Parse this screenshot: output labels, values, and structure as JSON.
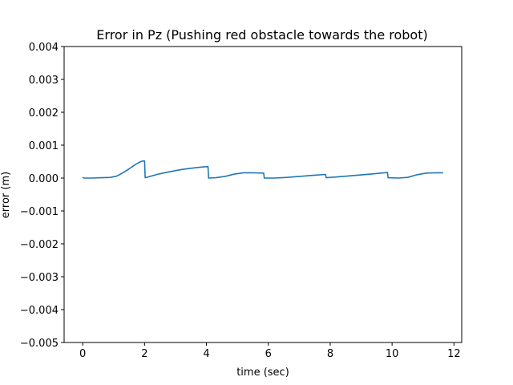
{
  "chart_data": {
    "type": "line",
    "title": "Error in Pz (Pushing red obstacle towards the robot)",
    "xlabel": "time (sec)",
    "ylabel": "error (m)",
    "xlim": [
      -0.6,
      12.25
    ],
    "ylim": [
      -0.005,
      0.004
    ],
    "x_ticks": [
      0,
      2,
      4,
      6,
      8,
      10,
      12
    ],
    "x_tick_labels": [
      "0",
      "2",
      "4",
      "6",
      "8",
      "10",
      "12"
    ],
    "y_ticks": [
      0.004,
      0.003,
      0.002,
      0.001,
      0.0,
      -0.001,
      -0.002,
      -0.003,
      -0.004,
      -0.005
    ],
    "y_tick_labels": [
      "0.004",
      "0.003",
      "0.002",
      "0.001",
      "0.000",
      "−0.001",
      "−0.002",
      "−0.003",
      "−0.004",
      "−0.005"
    ],
    "grid": false,
    "line_color": "#1f77b4",
    "series": [
      {
        "x": [
          0.0,
          0.05,
          0.3,
          0.6,
          0.9,
          1.1,
          1.3,
          1.5,
          1.7,
          1.85,
          1.95,
          2.0,
          2.02,
          2.1,
          2.4,
          2.8,
          3.2,
          3.6,
          3.9,
          4.05,
          4.07,
          4.3,
          4.6,
          4.9,
          5.2,
          5.5,
          5.85,
          5.87,
          6.2,
          6.6,
          7.0,
          7.4,
          7.85,
          7.87,
          8.3,
          8.8,
          9.3,
          9.85,
          9.87,
          10.2,
          10.5,
          10.8,
          11.1,
          11.4,
          11.65
        ],
        "y": [
          2e-05,
          0.0,
          0.0,
          1e-05,
          2e-05,
          6e-05,
          0.00016,
          0.00028,
          0.00041,
          0.00049,
          0.00052,
          0.00052,
          1e-05,
          3e-05,
          0.00011,
          0.00019,
          0.00026,
          0.00031,
          0.00034,
          0.00035,
          0.0,
          1e-05,
          5e-05,
          0.00012,
          0.00016,
          0.00016,
          0.00015,
          0.0,
          0.0,
          2e-05,
          5e-05,
          8e-05,
          0.00011,
          1e-05,
          4e-05,
          8e-05,
          0.00012,
          0.00017,
          1e-05,
          0.0,
          2e-05,
          0.0001,
          0.00015,
          0.00016,
          0.00016
        ]
      }
    ]
  }
}
